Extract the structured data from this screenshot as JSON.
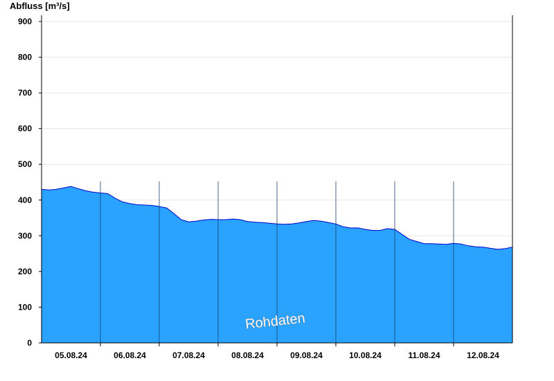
{
  "chart_data": {
    "type": "area",
    "ylabel": "Abfluss [m³/s]",
    "ylim": [
      0,
      900
    ],
    "yticks": [
      0,
      100,
      200,
      300,
      400,
      500,
      600,
      700,
      800,
      900
    ],
    "xlim": [
      "2024-08-04T12:00",
      "2024-08-12T12:00"
    ],
    "x_tick_labels": [
      "05.08.24",
      "06.08.24",
      "07.08.24",
      "08.08.24",
      "09.08.24",
      "10.08.24",
      "11.08.24",
      "12.08.24"
    ],
    "day_separators": [
      "2024-08-05T12:00",
      "2024-08-06T12:00",
      "2024-08-07T12:00",
      "2024-08-08T12:00",
      "2024-08-09T12:00",
      "2024-08-10T12:00",
      "2024-08-11T12:00"
    ],
    "grid": "horizontal",
    "watermark": "Rohdaten",
    "fill_color": "#29a3ff",
    "line_color": "#0000cc",
    "series": [
      {
        "x": [
          "2024-08-04T12:00",
          "2024-08-04T15:00",
          "2024-08-04T18:00",
          "2024-08-04T21:00",
          "2024-08-05T00:00",
          "2024-08-05T03:00",
          "2024-08-05T06:00",
          "2024-08-05T09:00",
          "2024-08-05T12:00",
          "2024-08-05T15:00",
          "2024-08-05T18:00",
          "2024-08-05T21:00",
          "2024-08-06T00:00",
          "2024-08-06T03:00",
          "2024-08-06T06:00",
          "2024-08-06T09:00",
          "2024-08-06T12:00",
          "2024-08-06T15:00",
          "2024-08-06T18:00",
          "2024-08-06T21:00",
          "2024-08-07T00:00",
          "2024-08-07T03:00",
          "2024-08-07T06:00",
          "2024-08-07T09:00",
          "2024-08-07T12:00",
          "2024-08-07T15:00",
          "2024-08-07T18:00",
          "2024-08-07T21:00",
          "2024-08-08T00:00",
          "2024-08-08T03:00",
          "2024-08-08T06:00",
          "2024-08-08T09:00",
          "2024-08-08T12:00",
          "2024-08-08T15:00",
          "2024-08-08T18:00",
          "2024-08-08T21:00",
          "2024-08-09T00:00",
          "2024-08-09T03:00",
          "2024-08-09T06:00",
          "2024-08-09T09:00",
          "2024-08-09T12:00",
          "2024-08-09T15:00",
          "2024-08-09T18:00",
          "2024-08-09T21:00",
          "2024-08-10T00:00",
          "2024-08-10T03:00",
          "2024-08-10T06:00",
          "2024-08-10T09:00",
          "2024-08-10T12:00",
          "2024-08-10T15:00",
          "2024-08-10T18:00",
          "2024-08-10T21:00",
          "2024-08-11T00:00",
          "2024-08-11T03:00",
          "2024-08-11T06:00",
          "2024-08-11T09:00",
          "2024-08-11T12:00",
          "2024-08-11T15:00",
          "2024-08-11T18:00",
          "2024-08-11T21:00",
          "2024-08-12T00:00",
          "2024-08-12T03:00",
          "2024-08-12T06:00",
          "2024-08-12T09:00",
          "2024-08-12T12:00"
        ],
        "values": [
          430,
          428,
          430,
          434,
          438,
          432,
          426,
          422,
          420,
          418,
          405,
          395,
          390,
          387,
          386,
          385,
          382,
          378,
          362,
          345,
          339,
          341,
          344,
          346,
          345,
          345,
          347,
          345,
          340,
          338,
          337,
          335,
          333,
          332,
          333,
          336,
          340,
          343,
          341,
          337,
          333,
          325,
          322,
          322,
          318,
          315,
          315,
          320,
          318,
          304,
          290,
          284,
          278,
          278,
          277,
          276,
          279,
          277,
          272,
          269,
          268,
          265,
          262,
          264,
          268
        ]
      }
    ]
  }
}
